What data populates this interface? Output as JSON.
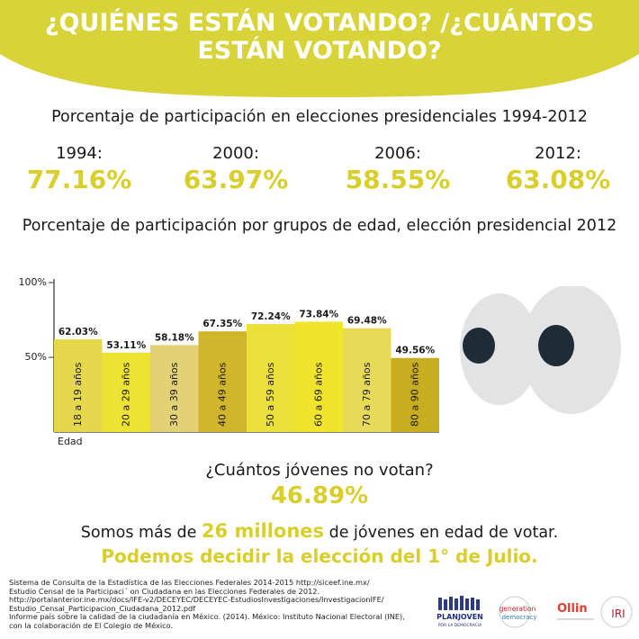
{
  "header": {
    "title_line1": "¿QUIÉNES ESTÁN VOTANDO? /¿CUÁNTOS",
    "title_line2": "ESTÁN VOTANDO?"
  },
  "turnout": {
    "title": "Porcentaje de participación en elecciones presidenciales 1994-2012",
    "items": [
      {
        "year": "1994:",
        "value": "77.16%"
      },
      {
        "year": "2000:",
        "value": "63.97%"
      },
      {
        "year": "2006:",
        "value": "58.55%"
      },
      {
        "year": "2012:",
        "value": "63.08%"
      }
    ]
  },
  "chart_data": {
    "type": "bar",
    "title": "Porcentaje de participación por grupos de edad, elección presidencial 2012",
    "xlabel": "Edad",
    "ylabel": "",
    "ylim": [
      0,
      100
    ],
    "yticks": [
      "100%",
      "50%"
    ],
    "ytick_values": [
      100,
      50
    ],
    "categories": [
      "18 a 19 años",
      "20 a 29 años",
      "30 a 39 años",
      "40 a 49 años",
      "50 a 59 años",
      "60 a 69 años",
      "70 a 79 años",
      "80 a 90 años"
    ],
    "values": [
      62.03,
      53.11,
      58.18,
      67.35,
      72.24,
      73.84,
      69.48,
      49.56
    ],
    "data_labels": [
      "62.03%",
      "53.11%",
      "58.18%",
      "67.35%",
      "72.24%",
      "73.84%",
      "69.48%",
      "49.56%"
    ],
    "colors": [
      "#e6d84c",
      "#ede333",
      "#e3d275",
      "#d1b52a",
      "#ebdf3a",
      "#f1e42c",
      "#e7da58",
      "#c9ad21"
    ]
  },
  "young": {
    "question": "¿Cuántos jóvenes no votan?",
    "value": "46.89%",
    "line1_pre": "Somos más de ",
    "line1_hl": "26 millones",
    "line1_post": " de jóvenes en edad de votar.",
    "line2": "Podemos decidir la elección del 1° de Julio."
  },
  "sources": [
    "Sistema de Consulta de la Estadística de las Elecciones Federales 2014-2015 http://siceef.ine.mx/",
    "Estudio Censal de la Participaci´ on Ciudadana en las Elecciones Federales de 2012.",
    "http://portalanterior.ine.mx/docs/IFE-v2/DECEYEC/DECEYEC-EstudiosInvestigaciones/InvestigacionIFE/",
    "Estudio_Censal_Participacion_Ciudadana_2012.pdf",
    "Informe país sobre la calidad de la ciudadanía en México. (2014). México: Instituto Nacional Electoral (INE),",
    "con la colaboración de El Colegio de México."
  ],
  "logos": {
    "planjoven_line1": "PLANJOVEN",
    "planjoven_line2": "POR LA DEMOCRACIA",
    "gen_line1": "generation",
    "gen_line2": "democracy",
    "ollin": "Ollin",
    "iri": "IRI"
  },
  "colors": {
    "accent": "#d8ce2c",
    "header_bg": "#d9d33a"
  }
}
